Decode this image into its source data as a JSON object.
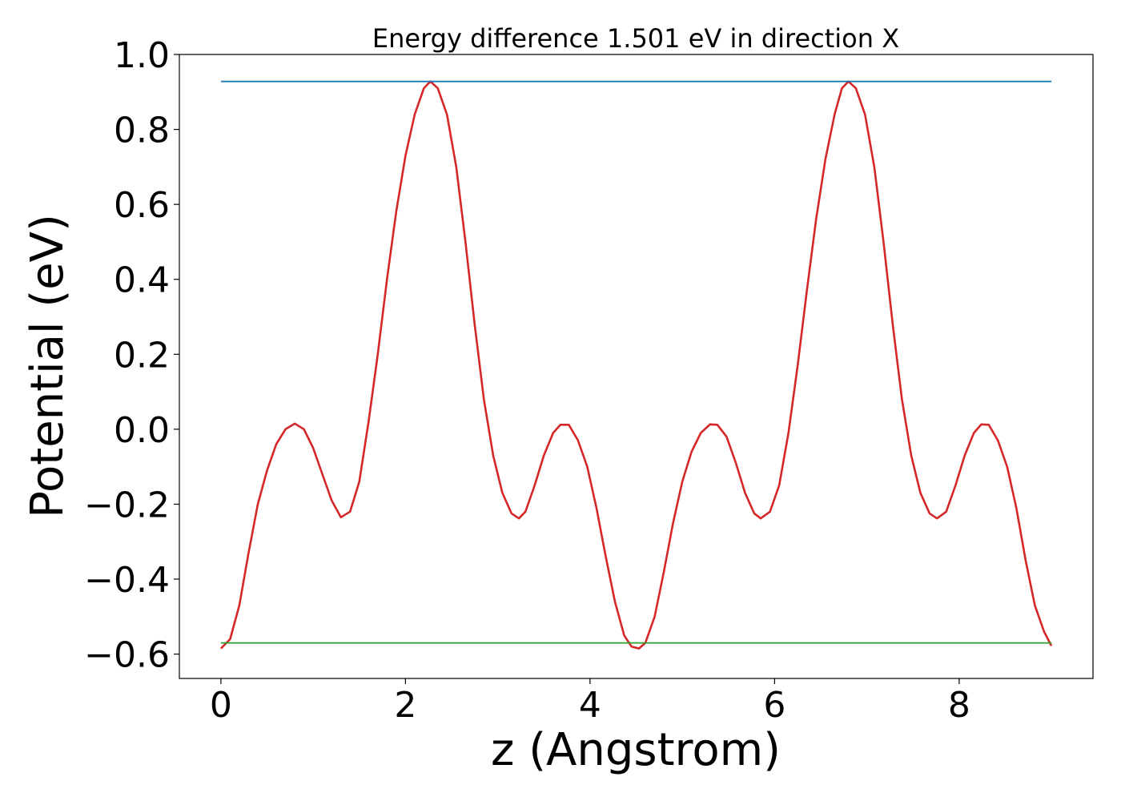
{
  "chart_data": {
    "type": "line",
    "title": "Energy difference 1.501 eV in direction X",
    "xlabel": "z (Angstrom)",
    "ylabel": "Potential (eV)",
    "xlim": [
      -0.45,
      9.45
    ],
    "ylim": [
      -0.665,
      1.0
    ],
    "xticks": [
      {
        "value": 0,
        "label": "0"
      },
      {
        "value": 2,
        "label": "2"
      },
      {
        "value": 4,
        "label": "4"
      },
      {
        "value": 6,
        "label": "6"
      },
      {
        "value": 8,
        "label": "8"
      }
    ],
    "yticks": [
      {
        "value": -0.6,
        "label": "−0.6"
      },
      {
        "value": -0.4,
        "label": "−0.4"
      },
      {
        "value": -0.2,
        "label": "−0.2"
      },
      {
        "value": 0.0,
        "label": "0.0"
      },
      {
        "value": 0.2,
        "label": "0.2"
      },
      {
        "value": 0.4,
        "label": "0.4"
      },
      {
        "value": 0.6,
        "label": "0.6"
      },
      {
        "value": 0.8,
        "label": "0.8"
      },
      {
        "value": 1.0,
        "label": "1.0"
      }
    ],
    "grid": false,
    "series": [
      {
        "color": "#d62728",
        "points": [
          [
            0.0,
            -0.585
          ],
          [
            0.1,
            -0.56
          ],
          [
            0.2,
            -0.47
          ],
          [
            0.3,
            -0.33
          ],
          [
            0.4,
            -0.2
          ],
          [
            0.5,
            -0.11
          ],
          [
            0.6,
            -0.04
          ],
          [
            0.7,
            0.0
          ],
          [
            0.8,
            0.015
          ],
          [
            0.9,
            0.0
          ],
          [
            1.0,
            -0.05
          ],
          [
            1.1,
            -0.12
          ],
          [
            1.2,
            -0.19
          ],
          [
            1.3,
            -0.235
          ],
          [
            1.4,
            -0.22
          ],
          [
            1.5,
            -0.14
          ],
          [
            1.6,
            0.02
          ],
          [
            1.7,
            0.2
          ],
          [
            1.8,
            0.4
          ],
          [
            1.9,
            0.58
          ],
          [
            2.0,
            0.73
          ],
          [
            2.1,
            0.84
          ],
          [
            2.2,
            0.91
          ],
          [
            2.27,
            0.928
          ],
          [
            2.35,
            0.91
          ],
          [
            2.45,
            0.84
          ],
          [
            2.55,
            0.7
          ],
          [
            2.65,
            0.5
          ],
          [
            2.75,
            0.28
          ],
          [
            2.85,
            0.08
          ],
          [
            2.95,
            -0.07
          ],
          [
            3.05,
            -0.17
          ],
          [
            3.15,
            -0.225
          ],
          [
            3.23,
            -0.238
          ],
          [
            3.3,
            -0.22
          ],
          [
            3.4,
            -0.15
          ],
          [
            3.5,
            -0.07
          ],
          [
            3.6,
            -0.01
          ],
          [
            3.68,
            0.012
          ],
          [
            3.77,
            0.012
          ],
          [
            3.87,
            -0.03
          ],
          [
            3.97,
            -0.1
          ],
          [
            4.07,
            -0.21
          ],
          [
            4.17,
            -0.34
          ],
          [
            4.27,
            -0.46
          ],
          [
            4.37,
            -0.55
          ],
          [
            4.45,
            -0.58
          ],
          [
            4.53,
            -0.585
          ],
          [
            4.6,
            -0.57
          ],
          [
            4.7,
            -0.5
          ],
          [
            4.8,
            -0.38
          ],
          [
            4.9,
            -0.25
          ],
          [
            5.0,
            -0.14
          ],
          [
            5.1,
            -0.06
          ],
          [
            5.2,
            -0.01
          ],
          [
            5.3,
            0.013
          ],
          [
            5.38,
            0.012
          ],
          [
            5.48,
            -0.02
          ],
          [
            5.58,
            -0.09
          ],
          [
            5.68,
            -0.17
          ],
          [
            5.78,
            -0.225
          ],
          [
            5.85,
            -0.238
          ],
          [
            5.95,
            -0.22
          ],
          [
            6.05,
            -0.15
          ],
          [
            6.15,
            -0.01
          ],
          [
            6.25,
            0.17
          ],
          [
            6.35,
            0.37
          ],
          [
            6.45,
            0.56
          ],
          [
            6.55,
            0.72
          ],
          [
            6.65,
            0.84
          ],
          [
            6.73,
            0.91
          ],
          [
            6.8,
            0.928
          ],
          [
            6.88,
            0.91
          ],
          [
            6.98,
            0.84
          ],
          [
            7.08,
            0.7
          ],
          [
            7.18,
            0.5
          ],
          [
            7.28,
            0.28
          ],
          [
            7.38,
            0.08
          ],
          [
            7.48,
            -0.07
          ],
          [
            7.58,
            -0.17
          ],
          [
            7.68,
            -0.225
          ],
          [
            7.76,
            -0.238
          ],
          [
            7.86,
            -0.22
          ],
          [
            7.96,
            -0.15
          ],
          [
            8.06,
            -0.07
          ],
          [
            8.16,
            -0.01
          ],
          [
            8.24,
            0.013
          ],
          [
            8.32,
            0.012
          ],
          [
            8.42,
            -0.03
          ],
          [
            8.52,
            -0.1
          ],
          [
            8.62,
            -0.21
          ],
          [
            8.72,
            -0.35
          ],
          [
            8.82,
            -0.47
          ],
          [
            8.92,
            -0.54
          ],
          [
            9.0,
            -0.578
          ]
        ]
      },
      {
        "color": "#1f77b4",
        "points": [
          [
            0.0,
            0.928
          ],
          [
            9.0,
            0.928
          ]
        ]
      },
      {
        "color": "#2ca02c",
        "points": [
          [
            0.0,
            -0.57
          ],
          [
            9.0,
            -0.57
          ]
        ]
      }
    ]
  }
}
